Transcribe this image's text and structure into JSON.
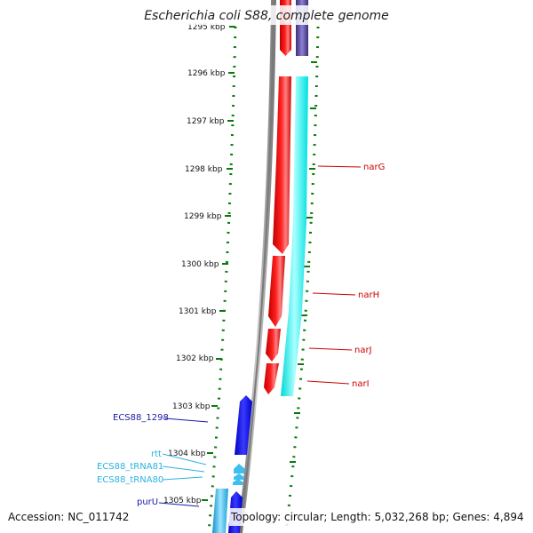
{
  "header": {
    "title": "Escherichia coli S88, complete genome"
  },
  "footer": {
    "accession": "Accession: NC_011742",
    "topology": "Topology: circular; Length: 5,032,268 bp; Genes: 4,894"
  },
  "ruler": {
    "top_partial_label": "1295 kbp",
    "ticks": [
      "1296 kbp",
      "1297 kbp",
      "1298 kbp",
      "1299 kbp",
      "1300 kbp",
      "1301 kbp",
      "1302 kbp",
      "1303 kbp",
      "1304 kbp",
      "1305 kbp"
    ]
  },
  "genes": {
    "narG": "narG",
    "narH": "narH",
    "narJ": "narJ",
    "narI": "narI",
    "ecs88_1298": "ECS88_1298",
    "rtt": "rtt",
    "trna81": "ECS88_tRNA81",
    "trna80": "ECS88_tRNA80",
    "purU": "purU"
  },
  "colors": {
    "forward_cds": "#ff0000",
    "reverse_cds": "#0000ff",
    "rna": "#2ec4f0",
    "cds_track": "#00ffff",
    "ruler_dots": "#0a7a0a",
    "backbone": "#888888",
    "gene_label_red": "#cc0000",
    "gene_label_blue": "#1a1aa8",
    "gene_label_cyan": "#2ab3e0"
  }
}
